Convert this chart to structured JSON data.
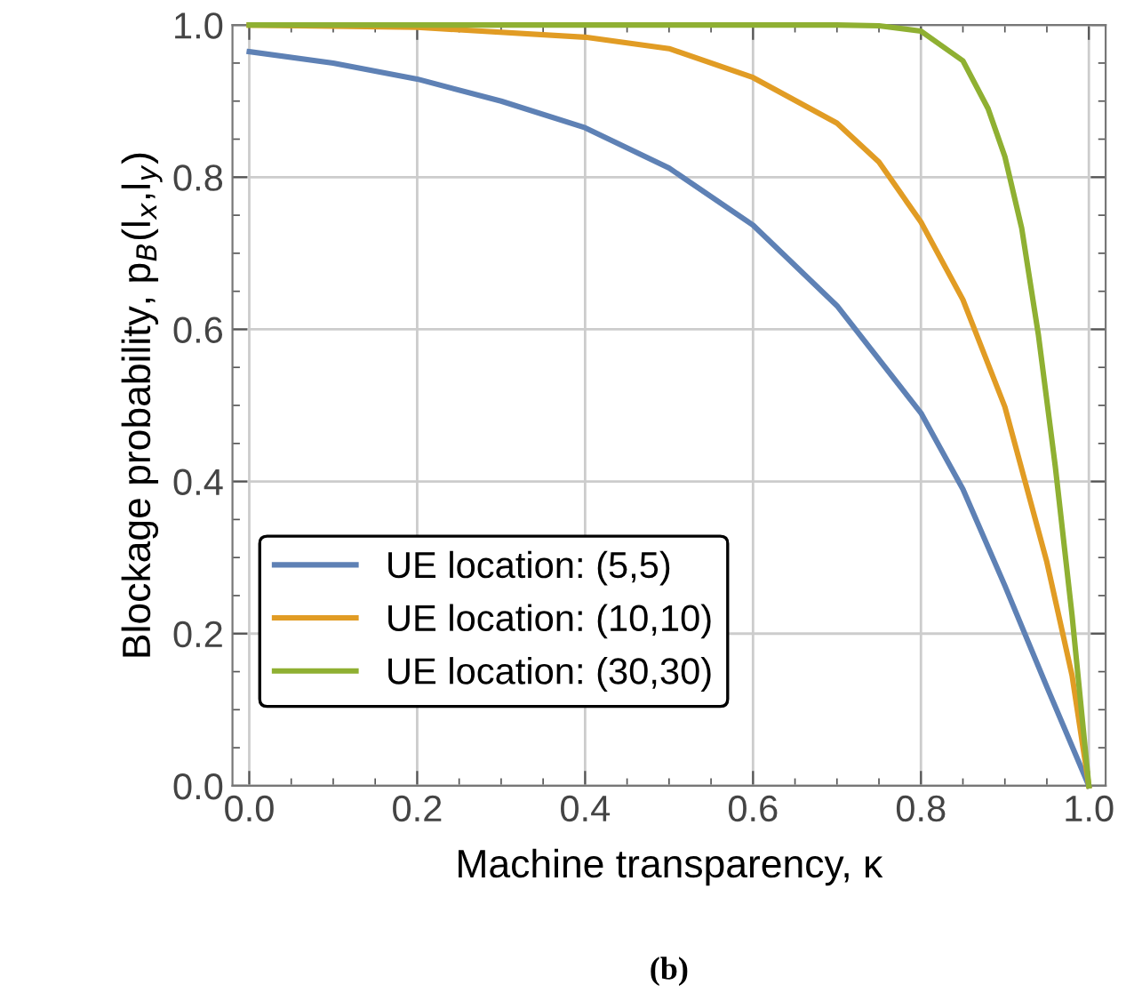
{
  "chart_data": {
    "type": "line",
    "xlabel": "Machine transparency, κ",
    "ylabel": "Blockage probability, p$_{B}$(l$_{x}$,l$_{y}$)",
    "annotations": [
      "(b)"
    ],
    "series": [
      {
        "name": "UE location: (5,5)",
        "color": "#5e81b5",
        "x": [
          0,
          0.1,
          0.2,
          0.3,
          0.4,
          0.5,
          0.6,
          0.7,
          0.8,
          0.85,
          0.9,
          0.95,
          1.0
        ],
        "values": [
          0.965,
          0.95,
          0.929,
          0.9,
          0.865,
          0.812,
          0.737,
          0.631,
          0.49,
          0.39,
          0.263,
          0.13,
          0
        ]
      },
      {
        "name": "UE location: (10,10)",
        "color": "#e19c24",
        "x": [
          0,
          0.2,
          0.4,
          0.5,
          0.6,
          0.7,
          0.75,
          0.8,
          0.85,
          0.9,
          0.95,
          0.98,
          1.0
        ],
        "values": [
          1.0,
          0.997,
          0.984,
          0.969,
          0.931,
          0.871,
          0.82,
          0.741,
          0.639,
          0.498,
          0.294,
          0.145,
          0
        ]
      },
      {
        "name": "UE location: (30,30)",
        "color": "#8fb032",
        "x": [
          0,
          0.7,
          0.75,
          0.8,
          0.85,
          0.88,
          0.9,
          0.92,
          0.94,
          0.96,
          0.98,
          1.0
        ],
        "values": [
          1.0,
          1.0,
          0.999,
          0.992,
          0.953,
          0.89,
          0.827,
          0.733,
          0.592,
          0.42,
          0.224,
          0
        ]
      }
    ],
    "xlim": [
      -0.02,
      1.02
    ],
    "ylim": [
      0,
      1.0
    ],
    "xticks": [
      {
        "value": 0,
        "label": "0.0"
      },
      0.2,
      0.4,
      0.6,
      0.8,
      {
        "value": 1,
        "label": "1.0"
      }
    ],
    "yticks": [
      {
        "value": 0,
        "label": "0.0"
      },
      0.2,
      0.4,
      0.6,
      0.8,
      {
        "value": 1,
        "label": "1.0"
      }
    ],
    "grid": true,
    "legend": "bottom left",
    "marker": "none",
    "line_style": "solid"
  }
}
